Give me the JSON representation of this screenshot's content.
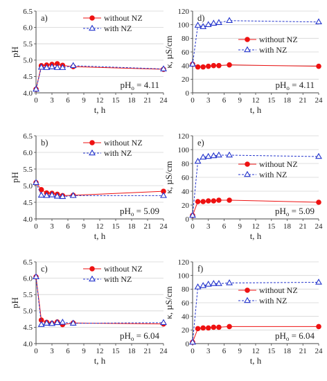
{
  "figure": {
    "legend_without": "without NZ",
    "legend_with": "with NZ"
  },
  "colors": {
    "without": "#ee1111",
    "with": "#2233cc",
    "axis": "#444444",
    "grid": "#d4d4d4"
  },
  "chart_data": [
    {
      "id": "a",
      "label": "a)",
      "type": "line",
      "xlabel": "t, h",
      "ylabel": "pH",
      "xlim": [
        0,
        24
      ],
      "ylim": [
        4.0,
        6.5
      ],
      "xticks": [
        "0",
        "3",
        "6",
        "9",
        "12",
        "15",
        "18",
        "21",
        "24"
      ],
      "yticks": [
        "4.0",
        "4.5",
        "5.0",
        "5.5",
        "6.0",
        "6.5"
      ],
      "annotation": {
        "base": "pH",
        "sub": "o",
        "value": " = 4.11"
      },
      "legend": "top-right",
      "grid": true,
      "series": [
        {
          "name": "without NZ",
          "x": [
            0,
            1,
            2,
            3,
            4,
            5,
            7,
            24
          ],
          "y": [
            4.11,
            4.83,
            4.85,
            4.87,
            4.89,
            4.84,
            4.8,
            4.72
          ]
        },
        {
          "name": "with NZ",
          "x": [
            0,
            1,
            2,
            3,
            4,
            5,
            7,
            24
          ],
          "y": [
            4.11,
            4.78,
            4.77,
            4.79,
            4.77,
            4.77,
            4.83,
            4.73
          ]
        }
      ]
    },
    {
      "id": "d",
      "label": "d)",
      "type": "line",
      "xlabel": "t, h",
      "ylabel": "κ, µS/cm",
      "xlim": [
        0,
        24
      ],
      "ylim": [
        0,
        120
      ],
      "xticks": [
        "0",
        "3",
        "6",
        "9",
        "12",
        "15",
        "18",
        "21",
        "24"
      ],
      "yticks": [
        "0",
        "20",
        "40",
        "60",
        "80",
        "100",
        "120"
      ],
      "annotation": {
        "base": "pH",
        "sub": "o",
        "value": " = 4.11"
      },
      "legend": "middle-right",
      "grid": true,
      "series": [
        {
          "name": "without NZ",
          "x": [
            0,
            1,
            2,
            3,
            4,
            5,
            7,
            24
          ],
          "y": [
            42,
            38,
            38,
            39,
            40,
            40,
            41,
            39
          ]
        },
        {
          "name": "with NZ",
          "x": [
            0,
            1,
            2,
            3,
            4,
            5,
            7,
            24
          ],
          "y": [
            42,
            99,
            97,
            100,
            102,
            103,
            106,
            104
          ]
        }
      ]
    },
    {
      "id": "b",
      "label": "b)",
      "type": "line",
      "xlabel": "t, h",
      "ylabel": "pH",
      "xlim": [
        0,
        24
      ],
      "ylim": [
        4.0,
        6.5
      ],
      "xticks": [
        "0",
        "3",
        "6",
        "9",
        "12",
        "15",
        "18",
        "21",
        "24"
      ],
      "yticks": [
        "4.0",
        "4.5",
        "5.0",
        "5.5",
        "6.0",
        "6.5"
      ],
      "annotation": {
        "base": "pH",
        "sub": "o",
        "value": " = 5.09"
      },
      "legend": "top-right",
      "grid": true,
      "series": [
        {
          "name": "without NZ",
          "x": [
            0,
            1,
            2,
            3,
            4,
            5,
            7,
            24
          ],
          "y": [
            5.09,
            4.88,
            4.78,
            4.77,
            4.74,
            4.7,
            4.71,
            4.83
          ]
        },
        {
          "name": "with NZ",
          "x": [
            0,
            1,
            2,
            3,
            4,
            5,
            7,
            24
          ],
          "y": [
            5.09,
            4.71,
            4.7,
            4.72,
            4.68,
            4.67,
            4.7,
            4.7
          ]
        }
      ]
    },
    {
      "id": "e",
      "label": "e)",
      "type": "line",
      "xlabel": "t, h",
      "ylabel": "κ, µS/cm",
      "xlim": [
        0,
        24
      ],
      "ylim": [
        0,
        120
      ],
      "xticks": [
        "0",
        "3",
        "6",
        "9",
        "12",
        "15",
        "18",
        "21",
        "24"
      ],
      "yticks": [
        "0",
        "20",
        "40",
        "60",
        "80",
        "100",
        "120"
      ],
      "annotation": {
        "base": "pH",
        "sub": "o",
        "value": " = 5.09"
      },
      "legend": "middle-right",
      "grid": true,
      "series": [
        {
          "name": "without NZ",
          "x": [
            0,
            1,
            2,
            3,
            4,
            5,
            7,
            24
          ],
          "y": [
            5,
            25,
            25,
            26,
            26,
            27,
            27,
            24
          ]
        },
        {
          "name": "with NZ",
          "x": [
            0,
            1,
            2,
            3,
            4,
            5,
            7,
            24
          ],
          "y": [
            5,
            83,
            89,
            90,
            91,
            92,
            92,
            90
          ]
        }
      ]
    },
    {
      "id": "c",
      "label": "c)",
      "type": "line",
      "xlabel": "t, h",
      "ylabel": "pH",
      "xlim": [
        0,
        24
      ],
      "ylim": [
        4.0,
        6.5
      ],
      "xticks": [
        "0",
        "3",
        "6",
        "9",
        "12",
        "15",
        "18",
        "21",
        "24"
      ],
      "yticks": [
        "4.0",
        "4.5",
        "5.0",
        "5.5",
        "6.0",
        "6.5"
      ],
      "annotation": {
        "base": "pH",
        "sub": "o",
        "value": " = 6.04"
      },
      "legend": "top-right",
      "grid": true,
      "series": [
        {
          "name": "without NZ",
          "x": [
            0,
            1,
            2,
            3,
            4,
            5,
            7,
            24
          ],
          "y": [
            6.04,
            4.72,
            4.65,
            4.62,
            4.66,
            4.58,
            4.63,
            4.6
          ]
        },
        {
          "name": "with NZ",
          "x": [
            0,
            1,
            2,
            3,
            4,
            5,
            7,
            24
          ],
          "y": [
            6.04,
            4.58,
            4.62,
            4.61,
            4.64,
            4.65,
            4.62,
            4.64
          ]
        }
      ]
    },
    {
      "id": "f",
      "label": "f)",
      "type": "line",
      "xlabel": "t, h",
      "ylabel": "κ, µS/cm",
      "xlim": [
        0,
        24
      ],
      "ylim": [
        0,
        120
      ],
      "xticks": [
        "0",
        "3",
        "6",
        "9",
        "12",
        "15",
        "18",
        "21",
        "24"
      ],
      "yticks": [
        "0",
        "20",
        "40",
        "60",
        "80",
        "100",
        "120"
      ],
      "annotation": {
        "base": "pH",
        "sub": "o",
        "value": " = 6.04"
      },
      "legend": "middle-right",
      "grid": true,
      "series": [
        {
          "name": "without NZ",
          "x": [
            0,
            1,
            2,
            3,
            4,
            5,
            7,
            24
          ],
          "y": [
            2,
            22,
            23,
            23,
            24,
            24,
            25,
            25
          ]
        },
        {
          "name": "with NZ",
          "x": [
            0,
            1,
            2,
            3,
            4,
            5,
            7,
            24
          ],
          "y": [
            2,
            83,
            85,
            87,
            88,
            88,
            89,
            90
          ]
        }
      ]
    }
  ]
}
